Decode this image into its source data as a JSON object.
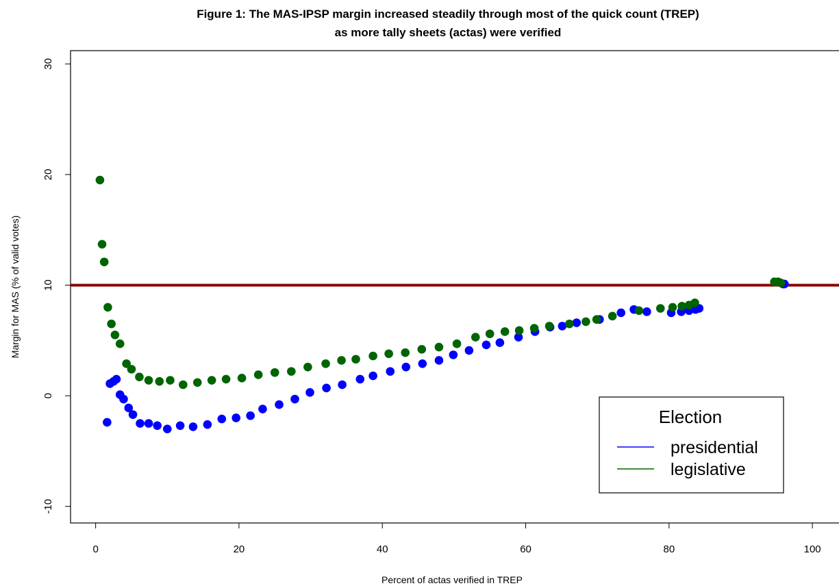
{
  "chart_data": {
    "type": "scatter",
    "title_lines": [
      "Figure 1: The MAS-IPSP margin increased steadily through most of the quick count (TREP)",
      "as more tally sheets (actas) were verified"
    ],
    "xlabel": "Percent of actas verified in TREP",
    "ylabel": "Margin for MAS (% of valid votes)",
    "xlim": [
      -3.5,
      104
    ],
    "ylim": [
      -11.5,
      31.2
    ],
    "x_ticks": [
      0,
      20,
      40,
      60,
      80,
      100
    ],
    "x_tick_labels": [
      "0",
      "20",
      "40",
      "60",
      "80",
      "100"
    ],
    "y_ticks": [
      -10,
      0,
      10,
      20,
      30
    ],
    "y_tick_labels": [
      "-10",
      "0",
      "10",
      "20",
      "30"
    ],
    "reference_line": {
      "y": 10,
      "color": "#8b0000"
    },
    "grid": false,
    "legend": {
      "title": "Election",
      "position": "bottom-right",
      "entries": [
        {
          "label": "presidential",
          "color": "#0000ff"
        },
        {
          "label": "legislative",
          "color": "#006400"
        }
      ]
    },
    "series": [
      {
        "name": "presidential",
        "color": "#0000ff",
        "points": [
          [
            1.6,
            -2.4
          ],
          [
            2.0,
            1.1
          ],
          [
            2.5,
            1.3
          ],
          [
            2.9,
            1.5
          ],
          [
            3.4,
            0.1
          ],
          [
            3.9,
            -0.3
          ],
          [
            4.6,
            -1.1
          ],
          [
            5.2,
            -1.7
          ],
          [
            6.2,
            -2.5
          ],
          [
            7.4,
            -2.5
          ],
          [
            8.6,
            -2.7
          ],
          [
            10.0,
            -3.0
          ],
          [
            11.8,
            -2.7
          ],
          [
            13.6,
            -2.8
          ],
          [
            15.6,
            -2.6
          ],
          [
            17.6,
            -2.1
          ],
          [
            19.6,
            -2.0
          ],
          [
            21.6,
            -1.8
          ],
          [
            23.3,
            -1.2
          ],
          [
            25.6,
            -0.8
          ],
          [
            27.8,
            -0.3
          ],
          [
            29.9,
            0.3
          ],
          [
            32.2,
            0.7
          ],
          [
            34.4,
            1.0
          ],
          [
            36.9,
            1.5
          ],
          [
            38.7,
            1.8
          ],
          [
            41.1,
            2.2
          ],
          [
            43.3,
            2.6
          ],
          [
            45.6,
            2.9
          ],
          [
            47.9,
            3.2
          ],
          [
            49.9,
            3.7
          ],
          [
            52.1,
            4.1
          ],
          [
            54.5,
            4.6
          ],
          [
            56.4,
            4.8
          ],
          [
            59.0,
            5.3
          ],
          [
            61.3,
            5.8
          ],
          [
            63.4,
            6.2
          ],
          [
            65.1,
            6.3
          ],
          [
            67.1,
            6.6
          ],
          [
            70.3,
            6.9
          ],
          [
            73.3,
            7.5
          ],
          [
            75.1,
            7.8
          ],
          [
            76.9,
            7.6
          ],
          [
            80.3,
            7.5
          ],
          [
            81.7,
            7.6
          ],
          [
            82.8,
            7.7
          ],
          [
            83.7,
            7.8
          ],
          [
            84.2,
            7.9
          ],
          [
            95.9,
            10.1
          ],
          [
            96.1,
            10.1
          ]
        ]
      },
      {
        "name": "legislative",
        "color": "#006400",
        "points": [
          [
            0.6,
            19.5
          ],
          [
            0.9,
            13.7
          ],
          [
            1.2,
            12.1
          ],
          [
            1.7,
            8.0
          ],
          [
            2.2,
            6.5
          ],
          [
            2.7,
            5.5
          ],
          [
            3.4,
            4.7
          ],
          [
            4.3,
            2.9
          ],
          [
            5.0,
            2.4
          ],
          [
            6.1,
            1.7
          ],
          [
            7.4,
            1.4
          ],
          [
            8.9,
            1.3
          ],
          [
            10.4,
            1.4
          ],
          [
            12.2,
            1.0
          ],
          [
            14.2,
            1.2
          ],
          [
            16.2,
            1.4
          ],
          [
            18.2,
            1.5
          ],
          [
            20.4,
            1.6
          ],
          [
            22.7,
            1.9
          ],
          [
            25.0,
            2.1
          ],
          [
            27.3,
            2.2
          ],
          [
            29.6,
            2.6
          ],
          [
            32.1,
            2.9
          ],
          [
            34.3,
            3.2
          ],
          [
            36.3,
            3.3
          ],
          [
            38.7,
            3.6
          ],
          [
            40.9,
            3.8
          ],
          [
            43.2,
            3.9
          ],
          [
            45.5,
            4.2
          ],
          [
            47.9,
            4.4
          ],
          [
            50.4,
            4.7
          ],
          [
            53.0,
            5.3
          ],
          [
            55.0,
            5.6
          ],
          [
            57.1,
            5.8
          ],
          [
            59.1,
            5.9
          ],
          [
            61.2,
            6.1
          ],
          [
            63.3,
            6.3
          ],
          [
            66.1,
            6.5
          ],
          [
            68.4,
            6.7
          ],
          [
            69.9,
            6.9
          ],
          [
            72.1,
            7.2
          ],
          [
            75.8,
            7.7
          ],
          [
            78.8,
            7.9
          ],
          [
            80.5,
            8.0
          ],
          [
            81.8,
            8.1
          ],
          [
            82.8,
            8.2
          ],
          [
            83.6,
            8.4
          ],
          [
            94.7,
            10.3
          ],
          [
            95.2,
            10.3
          ],
          [
            95.6,
            10.2
          ]
        ]
      }
    ]
  }
}
